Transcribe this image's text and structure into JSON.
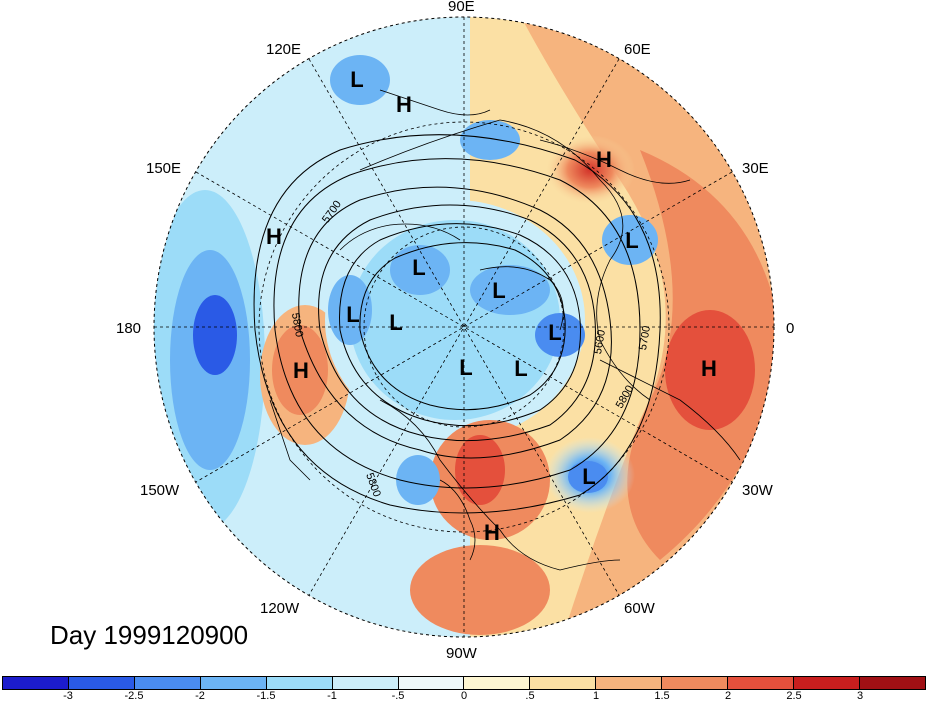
{
  "longitude_labels": {
    "lon_90e": "90E",
    "lon_60e": "60E",
    "lon_30e": "30E",
    "lon_0": "0",
    "lon_30w": "30W",
    "lon_60w": "60W",
    "lon_90w": "90W",
    "lon_120w": "120W",
    "lon_150w": "150W",
    "lon_180": "180",
    "lon_150e": "150E",
    "lon_120e": "120E"
  },
  "day_label": "Day 1999120900",
  "contour_labels": [
    "5700",
    "5800",
    "5800",
    "5600",
    "5700",
    "5800",
    "5800"
  ],
  "pressure_centers": [
    "L",
    "H",
    "H",
    "L",
    "L",
    "H",
    "L",
    "L",
    "L",
    "H",
    "L",
    "L",
    "L",
    "H",
    "L",
    "H"
  ],
  "colorbar": {
    "tick_labels": [
      "-3",
      "-2.5",
      "-2",
      "-1.5",
      "-1",
      "-.5",
      "0",
      ".5",
      "1",
      "1.5",
      "2",
      "2.5",
      "3"
    ],
    "colors": [
      "#1c1ccc",
      "#2a5ae6",
      "#4a8cf0",
      "#6cb4f4",
      "#9cdcf8",
      "#cceefa",
      "#eef8fa",
      "#fdf6d2",
      "#fbe0a4",
      "#f6b47e",
      "#ef8a5e",
      "#e4503c",
      "#c81e1e",
      "#a01014"
    ]
  }
}
